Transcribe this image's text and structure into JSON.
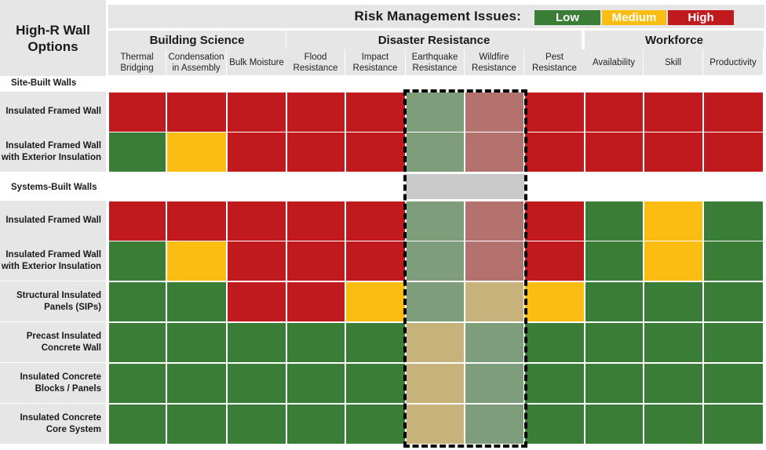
{
  "colors": {
    "low": "#3a7d36",
    "medium": "#fbbd11",
    "high": "#c0191e",
    "highlight_low": "#7e9d7a",
    "highlight_medium": "#c6b27a",
    "highlight_high": "#b4726f",
    "highlight_gap": "#c9c9c9"
  },
  "header": {
    "title": "High-R Wall Options",
    "risk_label": "Risk Management  Issues:"
  },
  "legend": [
    {
      "level": "low",
      "label": "Low"
    },
    {
      "level": "medium",
      "label": "Medium"
    },
    {
      "level": "high",
      "label": "High"
    }
  ],
  "groups": [
    {
      "name": "Building Science",
      "columns": [
        "Thermal Bridging",
        "Condensation in Assembly",
        "Bulk Moisture"
      ]
    },
    {
      "name": "Disaster Resistance",
      "columns": [
        "Flood Resistance",
        "Impact Resistance",
        "Earthquake Resistance",
        "Wildfire Resistance",
        "Pest Resistance"
      ]
    },
    {
      "name": "Workforce",
      "columns": [
        "Availability",
        "Skill",
        "Productivity"
      ]
    }
  ],
  "highlighted_columns": [
    "Earthquake Resistance",
    "Wildfire Resistance"
  ],
  "sections": [
    {
      "label": "Site-Built Walls",
      "rows": [
        {
          "label": "Insulated Framed Wall",
          "ratings": [
            "high",
            "high",
            "high",
            "high",
            "high",
            "low",
            "high",
            "high",
            "high",
            "high",
            "high"
          ]
        },
        {
          "label": "Insulated Framed Wall with Exterior Insulation",
          "ratings": [
            "low",
            "medium",
            "high",
            "high",
            "high",
            "low",
            "high",
            "high",
            "high",
            "high",
            "high"
          ]
        }
      ]
    },
    {
      "label": "Systems-Built Walls",
      "rows": [
        {
          "label": "Insulated Framed Wall",
          "ratings": [
            "high",
            "high",
            "high",
            "high",
            "high",
            "low",
            "high",
            "high",
            "low",
            "medium",
            "low"
          ]
        },
        {
          "label": "Insulated Framed Wall with Exterior Insulation",
          "ratings": [
            "low",
            "medium",
            "high",
            "high",
            "high",
            "low",
            "high",
            "high",
            "low",
            "medium",
            "low"
          ]
        },
        {
          "label": "Structural Insulated Panels (SIPs)",
          "ratings": [
            "low",
            "low",
            "high",
            "high",
            "medium",
            "low",
            "medium",
            "medium",
            "low",
            "low",
            "low"
          ]
        },
        {
          "label": "Precast Insulated Concrete Wall",
          "ratings": [
            "low",
            "low",
            "low",
            "low",
            "low",
            "medium",
            "low",
            "low",
            "low",
            "low",
            "low"
          ]
        },
        {
          "label": "Insulated Concrete Blocks / Panels",
          "ratings": [
            "low",
            "low",
            "low",
            "low",
            "low",
            "medium",
            "low",
            "low",
            "low",
            "low",
            "low"
          ]
        },
        {
          "label": "Insulated Concrete Core System",
          "ratings": [
            "low",
            "low",
            "low",
            "low",
            "low",
            "medium",
            "low",
            "low",
            "low",
            "low",
            "low"
          ]
        }
      ]
    }
  ]
}
